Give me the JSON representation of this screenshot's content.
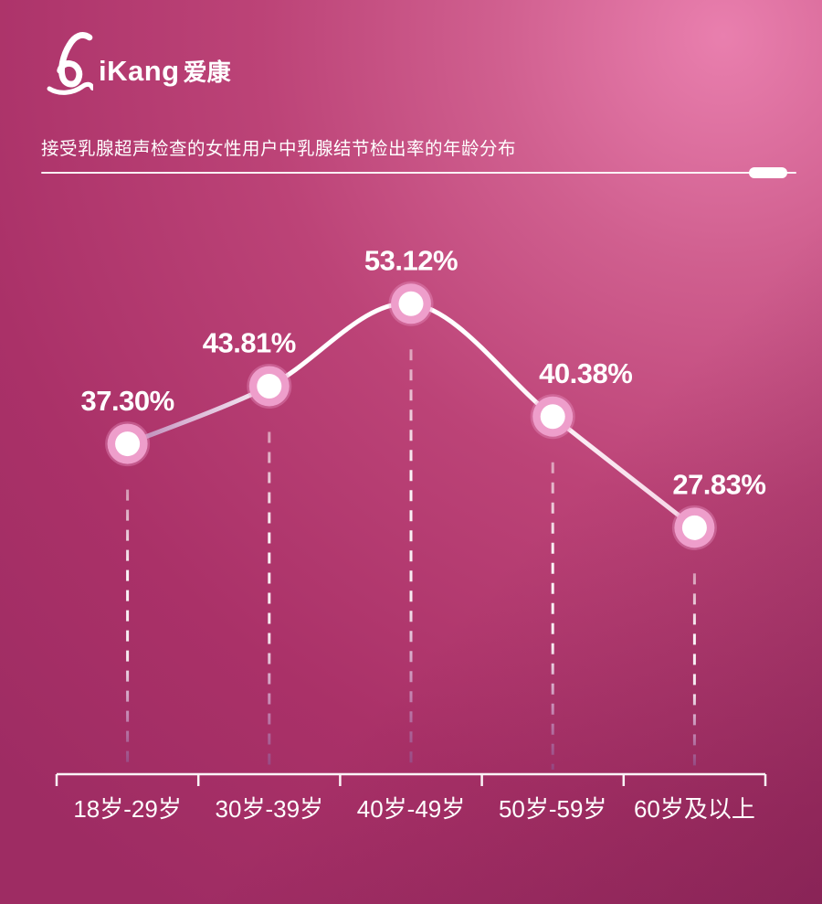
{
  "brand": {
    "logo_latin": "iKang",
    "logo_cn": "爱康",
    "ribbon_icon": "pink-ribbon-icon"
  },
  "header": {
    "title": "接受乳腺超声检查的女性用户中乳腺结节检出率的年龄分布"
  },
  "chart_data": {
    "type": "line",
    "smooth": true,
    "title": "接受乳腺超声检查的女性用户中乳腺结节检出率的年龄分布",
    "categories": [
      "18岁-29岁",
      "30岁-39岁",
      "40岁-49岁",
      "50岁-59岁",
      "60岁及以上"
    ],
    "values": [
      37.3,
      43.81,
      53.12,
      40.38,
      27.83
    ],
    "value_labels": [
      "37.30%",
      "43.81%",
      "53.12%",
      "40.38%",
      "27.83%"
    ],
    "xlabel": "",
    "ylabel": "",
    "ylim": [
      0,
      60
    ],
    "unit": "%",
    "grid": false,
    "legend": "none",
    "annotations": "dashed drop lines from each point to x-axis"
  },
  "colors": {
    "bg_light": "#e97fae",
    "bg_mid": "#bc4377",
    "bg_dark": "#8f2a60",
    "line_start": "#8a5290",
    "line_main": "#ffffff",
    "line_end": "#f1c6dd",
    "marker_ring": "#ee9ecb",
    "marker_core": "#ffffff",
    "axis": "#ffffff",
    "text": "#ffffff"
  }
}
